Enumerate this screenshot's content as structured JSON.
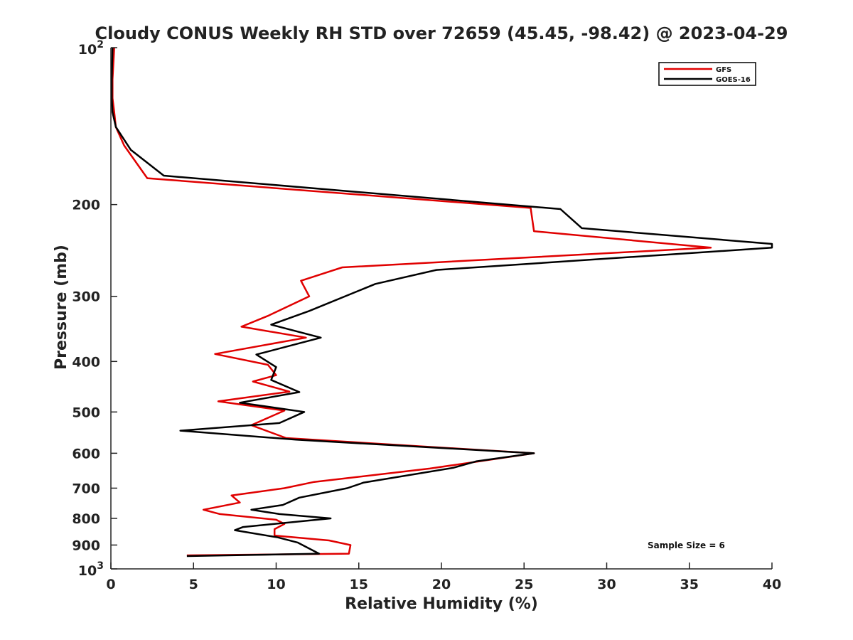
{
  "chart_data": {
    "type": "line",
    "title": "Cloudy CONUS Weekly RH STD over 72659 (45.45, -98.42) @ 2023-04-29",
    "xlabel": "Relative Humidity (%)",
    "ylabel": "Pressure (mb)",
    "xlim": [
      0,
      40
    ],
    "ylim": [
      100,
      1000
    ],
    "y_scale": "log",
    "y_reversed": true,
    "x_ticks": [
      "0",
      "5",
      "10",
      "15",
      "20",
      "25",
      "30",
      "35",
      "40"
    ],
    "y_ticks": [
      {
        "value": 100,
        "label": "10",
        "sup": "2"
      },
      {
        "value": 200,
        "label": "200",
        "sup": ""
      },
      {
        "value": 300,
        "label": "300",
        "sup": ""
      },
      {
        "value": 400,
        "label": "400",
        "sup": ""
      },
      {
        "value": 500,
        "label": "500",
        "sup": ""
      },
      {
        "value": 600,
        "label": "600",
        "sup": ""
      },
      {
        "value": 700,
        "label": "700",
        "sup": ""
      },
      {
        "value": 800,
        "label": "800",
        "sup": ""
      },
      {
        "value": 900,
        "label": "900",
        "sup": ""
      },
      {
        "value": 1000,
        "label": "10",
        "sup": "3"
      }
    ],
    "legend_position": "top-right",
    "annotation": "Sample Size = 6",
    "series": [
      {
        "name": "GFS",
        "color": "#e00000",
        "points": [
          [
            0.2,
            100
          ],
          [
            0.1,
            115
          ],
          [
            0.1,
            125
          ],
          [
            0.2,
            133
          ],
          [
            0.3,
            142
          ],
          [
            0.8,
            154
          ],
          [
            2.2,
            178
          ],
          [
            25.4,
            203
          ],
          [
            25.6,
            225
          ],
          [
            36.3,
            242
          ],
          [
            14.0,
            264
          ],
          [
            11.5,
            280
          ],
          [
            12.0,
            300
          ],
          [
            9.5,
            327
          ],
          [
            7.9,
            343
          ],
          [
            11.8,
            360
          ],
          [
            6.3,
            387
          ],
          [
            9.5,
            406
          ],
          [
            10.0,
            425
          ],
          [
            8.6,
            437
          ],
          [
            10.8,
            457
          ],
          [
            6.5,
            477
          ],
          [
            10.5,
            497
          ],
          [
            8.5,
            530
          ],
          [
            10.6,
            561
          ],
          [
            25.6,
            600
          ],
          [
            19.3,
            642
          ],
          [
            12.3,
            681
          ],
          [
            10.5,
            700
          ],
          [
            7.3,
            723
          ],
          [
            7.8,
            746
          ],
          [
            5.6,
            770
          ],
          [
            6.6,
            785
          ],
          [
            10.0,
            805
          ],
          [
            10.5,
            820
          ],
          [
            9.9,
            839
          ],
          [
            9.9,
            863
          ],
          [
            13.2,
            882
          ],
          [
            14.5,
            900
          ],
          [
            14.4,
            935
          ],
          [
            4.6,
            942
          ]
        ]
      },
      {
        "name": "GOES-16",
        "color": "#000000",
        "points": [
          [
            0.1,
            100
          ],
          [
            0.05,
            115
          ],
          [
            0.05,
            125
          ],
          [
            0.1,
            133
          ],
          [
            0.3,
            142
          ],
          [
            1.2,
            157
          ],
          [
            3.2,
            176
          ],
          [
            27.2,
            204
          ],
          [
            28.5,
            222
          ],
          [
            40.0,
            238
          ],
          [
            40.0,
            242
          ],
          [
            19.7,
            267
          ],
          [
            16.0,
            284
          ],
          [
            12.0,
            320
          ],
          [
            9.7,
            340
          ],
          [
            12.7,
            360
          ],
          [
            8.8,
            388
          ],
          [
            10.0,
            410
          ],
          [
            9.7,
            434
          ],
          [
            11.4,
            458
          ],
          [
            7.8,
            480
          ],
          [
            11.7,
            500
          ],
          [
            10.2,
            525
          ],
          [
            4.2,
            543
          ],
          [
            11.2,
            565
          ],
          [
            25.6,
            600
          ],
          [
            22.1,
            622
          ],
          [
            20.7,
            640
          ],
          [
            15.3,
            683
          ],
          [
            14.3,
            700
          ],
          [
            11.4,
            730
          ],
          [
            10.4,
            754
          ],
          [
            8.5,
            770
          ],
          [
            10.2,
            785
          ],
          [
            13.3,
            800
          ],
          [
            8.0,
            831
          ],
          [
            7.5,
            843
          ],
          [
            10.1,
            870
          ],
          [
            11.3,
            890
          ],
          [
            12.6,
            935
          ],
          [
            4.6,
            945
          ]
        ]
      }
    ]
  }
}
